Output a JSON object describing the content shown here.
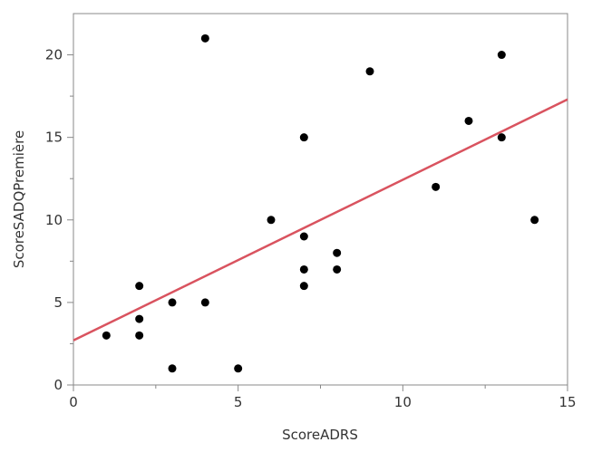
{
  "chart_data": {
    "type": "scatter",
    "title": "",
    "xlabel": "ScoreADRS",
    "ylabel": "ScoreSADQPremière",
    "xlim": [
      0,
      15
    ],
    "ylim": [
      0,
      22.5
    ],
    "x_ticks": [
      0,
      5,
      10,
      15
    ],
    "y_ticks": [
      0,
      5,
      10,
      15,
      20
    ],
    "x_tick_labels": [
      "0",
      "5",
      "10",
      "15"
    ],
    "y_tick_labels": [
      "0",
      "5",
      "10",
      "15",
      "20"
    ],
    "grid": false,
    "legend": "none",
    "points": [
      {
        "x": 1,
        "y": 3
      },
      {
        "x": 2,
        "y": 6
      },
      {
        "x": 2,
        "y": 4
      },
      {
        "x": 2,
        "y": 3
      },
      {
        "x": 3,
        "y": 5
      },
      {
        "x": 3,
        "y": 1
      },
      {
        "x": 4,
        "y": 21
      },
      {
        "x": 4,
        "y": 5
      },
      {
        "x": 5,
        "y": 1
      },
      {
        "x": 6,
        "y": 10
      },
      {
        "x": 7,
        "y": 15
      },
      {
        "x": 7,
        "y": 9
      },
      {
        "x": 7,
        "y": 7
      },
      {
        "x": 7,
        "y": 6
      },
      {
        "x": 8,
        "y": 8
      },
      {
        "x": 8,
        "y": 7
      },
      {
        "x": 9,
        "y": 19
      },
      {
        "x": 11,
        "y": 12
      },
      {
        "x": 12,
        "y": 16
      },
      {
        "x": 13,
        "y": 20
      },
      {
        "x": 13,
        "y": 15
      },
      {
        "x": 14,
        "y": 10
      }
    ],
    "fit_line": {
      "x": [
        0,
        15
      ],
      "y": [
        2.7,
        17.3
      ]
    },
    "colors": {
      "points": "#000000",
      "fit_line": "#d9535f",
      "axes": "#888888",
      "text": "#333333"
    }
  }
}
